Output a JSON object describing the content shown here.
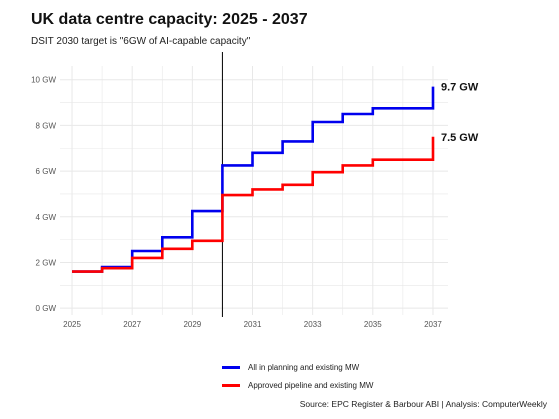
{
  "title": "UK data centre capacity: 2025 - 2037",
  "subtitle": "DSIT 2030 target is \"6GW of AI-capable capacity\"",
  "source": "Source: EPC Register & Barbour ABI | Analysis: ComputerWeekly",
  "colors": {
    "planning": "#0000ee",
    "approved": "#ff0000",
    "grid": "#e8e8e8",
    "target_line": "#000000"
  },
  "chart_data": {
    "type": "line",
    "step": true,
    "x_range": [
      2024.6,
      2037.5
    ],
    "y_range": [
      -0.3,
      10.6
    ],
    "xticks": [
      2025,
      2027,
      2029,
      2031,
      2033,
      2035,
      2037
    ],
    "xtick_labels": [
      "2025",
      "2027",
      "2029",
      "2031",
      "2033",
      "2035",
      "2037"
    ],
    "yticks": [
      0,
      2,
      4,
      6,
      8,
      10
    ],
    "ytick_labels": [
      "0 GW",
      "2 GW",
      "4 GW",
      "6 GW",
      "8 GW",
      "10 GW"
    ],
    "vline_x": 2030,
    "grid": true,
    "legend_position": "bottom",
    "series": [
      {
        "key": "planning",
        "name": "All in planning and existing MW",
        "end_label": "9.7 GW",
        "points": [
          [
            2025,
            1.6
          ],
          [
            2026,
            1.6
          ],
          [
            2026,
            1.8
          ],
          [
            2027,
            1.8
          ],
          [
            2027,
            2.5
          ],
          [
            2028,
            2.5
          ],
          [
            2028,
            3.1
          ],
          [
            2029,
            3.1
          ],
          [
            2029,
            4.25
          ],
          [
            2030,
            4.25
          ],
          [
            2030,
            6.25
          ],
          [
            2031,
            6.25
          ],
          [
            2031,
            6.8
          ],
          [
            2032,
            6.8
          ],
          [
            2032,
            7.3
          ],
          [
            2033,
            7.3
          ],
          [
            2033,
            8.15
          ],
          [
            2034,
            8.15
          ],
          [
            2034,
            8.5
          ],
          [
            2035,
            8.5
          ],
          [
            2035,
            8.75
          ],
          [
            2036,
            8.75
          ],
          [
            2037,
            8.75
          ],
          [
            2037,
            9.7
          ]
        ]
      },
      {
        "key": "approved",
        "name": "Approved pipeline and existing MW",
        "end_label": "7.5 GW",
        "points": [
          [
            2025,
            1.6
          ],
          [
            2026,
            1.6
          ],
          [
            2026,
            1.75
          ],
          [
            2027,
            1.75
          ],
          [
            2027,
            2.2
          ],
          [
            2028,
            2.2
          ],
          [
            2028,
            2.6
          ],
          [
            2029,
            2.6
          ],
          [
            2029,
            2.95
          ],
          [
            2030,
            2.95
          ],
          [
            2030,
            4.95
          ],
          [
            2031,
            4.95
          ],
          [
            2031,
            5.2
          ],
          [
            2032,
            5.2
          ],
          [
            2032,
            5.4
          ],
          [
            2033,
            5.4
          ],
          [
            2033,
            5.95
          ],
          [
            2034,
            5.95
          ],
          [
            2034,
            6.25
          ],
          [
            2035,
            6.25
          ],
          [
            2035,
            6.5
          ],
          [
            2036,
            6.5
          ],
          [
            2037,
            6.5
          ],
          [
            2037,
            7.5
          ]
        ]
      }
    ]
  }
}
